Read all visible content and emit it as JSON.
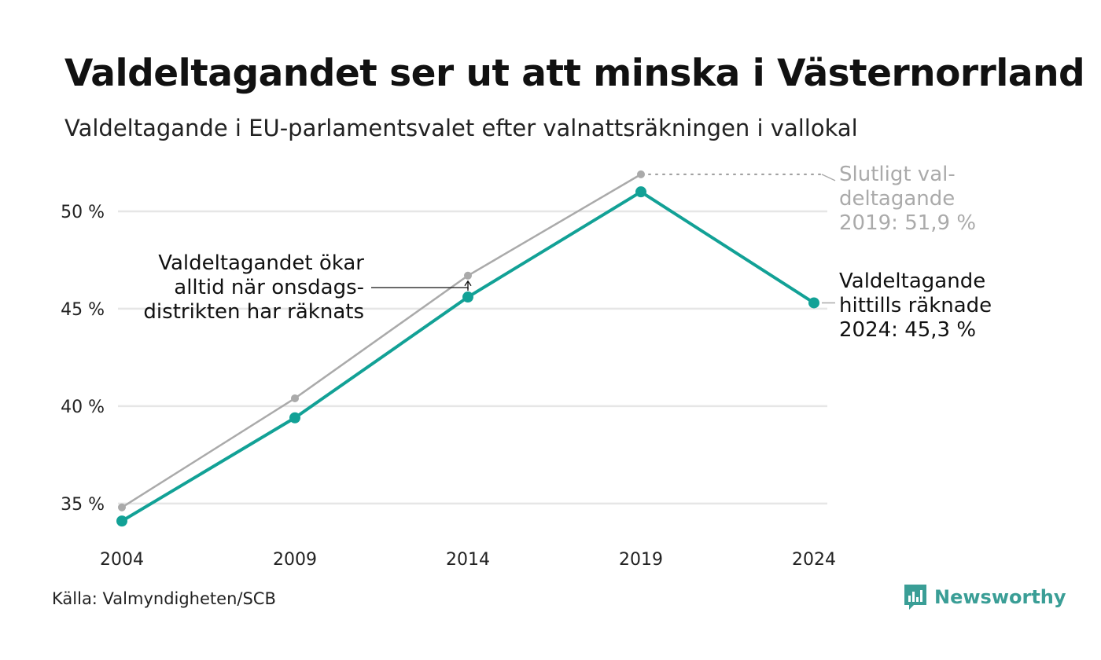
{
  "title": "Valdeltagandet ser ut att minska i Västernorrland",
  "subtitle": "Valdeltagande i EU-parlamentsvalet efter valnattsräkningen i vallokal",
  "source": "Källa: Valmyndigheten/SCB",
  "brand": "Newsworthy",
  "colors": {
    "teal": "#12a196",
    "gray": "#aaaaaa",
    "grid": "#e6e6e6",
    "text": "#111111"
  },
  "chart_data": {
    "type": "line",
    "categories": [
      "2004",
      "2009",
      "2014",
      "2019",
      "2024"
    ],
    "ylim": [
      33.5,
      52.5
    ],
    "yticks": [
      35,
      40,
      45,
      50
    ],
    "ytick_labels": [
      "35 %",
      "40 %",
      "45 %",
      "50 %"
    ],
    "grid": true,
    "series": [
      {
        "values": [
          34.8,
          40.4,
          46.7,
          51.9,
          null
        ],
        "color": "#aaaaaa"
      },
      {
        "values": [
          34.1,
          39.4,
          45.6,
          51.0,
          45.3
        ],
        "color": "#12a196"
      }
    ],
    "annotations": {
      "left_lines": [
        "Valdeltagandet ökar",
        "alltid när onsdags-",
        "distrikten har räknats"
      ],
      "final_lines": [
        "Slutligt val-",
        "deltagande",
        "2019: 51,9 %"
      ],
      "current_lines": [
        "Valdeltagande",
        "hittills räknade",
        "2024: 45,3 %"
      ]
    }
  }
}
